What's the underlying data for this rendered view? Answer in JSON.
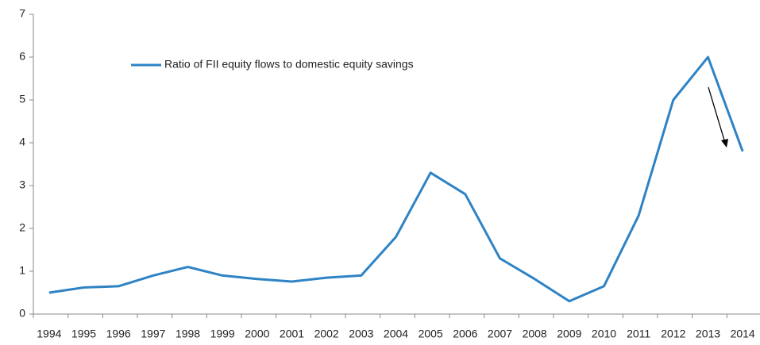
{
  "chart_data": {
    "type": "line",
    "categories": [
      "1994",
      "1995",
      "1996",
      "1997",
      "1998",
      "1999",
      "2000",
      "2001",
      "2002",
      "2003",
      "2004",
      "2005",
      "2006",
      "2007",
      "2008",
      "2009",
      "2010",
      "2011",
      "2012",
      "2013",
      "2014"
    ],
    "series": [
      {
        "name": "Ratio of FII equity flows to domestic equity savings",
        "color": "#2e83c5",
        "values": [
          0.5,
          0.62,
          0.65,
          0.9,
          1.1,
          0.9,
          0.82,
          0.76,
          0.85,
          0.9,
          1.8,
          3.3,
          2.8,
          1.3,
          0.82,
          0.3,
          0.65,
          2.3,
          5.0,
          6.0,
          3.8
        ]
      }
    ],
    "ylim": [
      0,
      7
    ],
    "yticks": [
      0,
      1,
      2,
      3,
      4,
      5,
      6,
      7
    ],
    "grid": false,
    "legend": "top-left"
  }
}
